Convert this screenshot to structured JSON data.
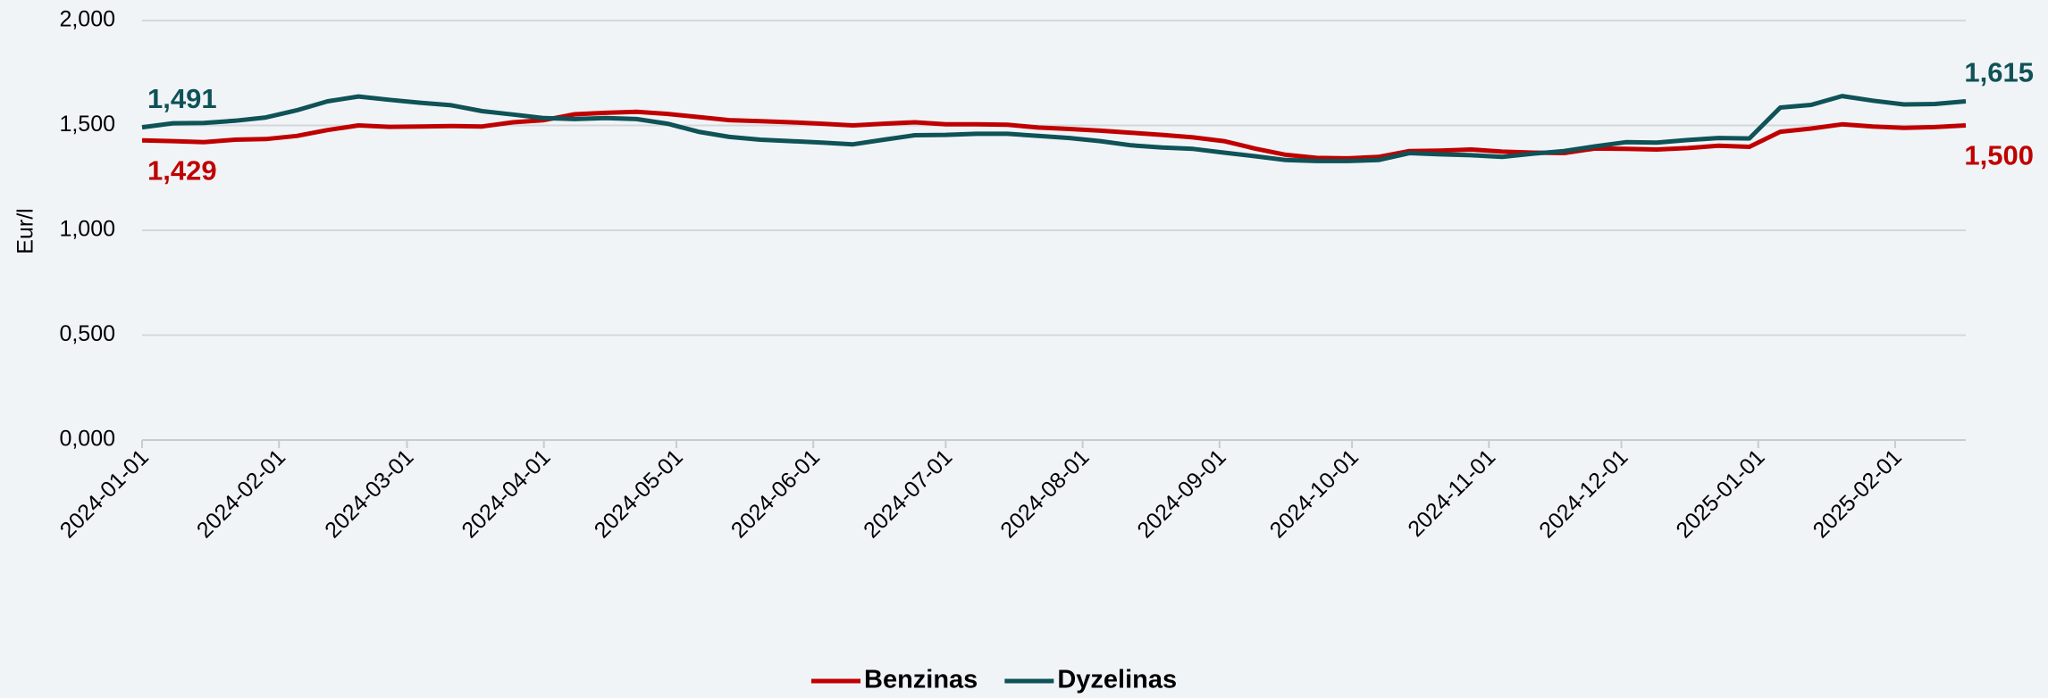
{
  "chart_data": {
    "type": "line",
    "ylabel": "Eur/l",
    "x": [
      "2024-01-01",
      "2024-01-08",
      "2024-01-15",
      "2024-01-22",
      "2024-01-29",
      "2024-02-05",
      "2024-02-12",
      "2024-02-19",
      "2024-02-26",
      "2024-03-04",
      "2024-03-11",
      "2024-03-18",
      "2024-03-25",
      "2024-04-01",
      "2024-04-08",
      "2024-04-15",
      "2024-04-22",
      "2024-04-29",
      "2024-05-06",
      "2024-05-13",
      "2024-05-20",
      "2024-05-27",
      "2024-06-03",
      "2024-06-10",
      "2024-06-17",
      "2024-06-24",
      "2024-07-01",
      "2024-07-08",
      "2024-07-15",
      "2024-07-22",
      "2024-07-29",
      "2024-08-05",
      "2024-08-12",
      "2024-08-19",
      "2024-08-26",
      "2024-09-02",
      "2024-09-09",
      "2024-09-16",
      "2024-09-23",
      "2024-09-30",
      "2024-10-07",
      "2024-10-14",
      "2024-10-21",
      "2024-10-28",
      "2024-11-04",
      "2024-11-11",
      "2024-11-18",
      "2024-11-25",
      "2024-12-02",
      "2024-12-09",
      "2024-12-16",
      "2024-12-23",
      "2024-12-30",
      "2025-01-06",
      "2025-01-13",
      "2025-01-20",
      "2025-01-27",
      "2025-02-03",
      "2025-02-10",
      "2025-02-17"
    ],
    "series": [
      {
        "name": "Benzinas",
        "color": "#c00000",
        "values": [
          1.429,
          1.425,
          1.42,
          1.432,
          1.435,
          1.45,
          1.478,
          1.5,
          1.493,
          1.495,
          1.497,
          1.495,
          1.515,
          1.525,
          1.553,
          1.56,
          1.565,
          1.555,
          1.54,
          1.525,
          1.52,
          1.515,
          1.508,
          1.5,
          1.508,
          1.515,
          1.505,
          1.505,
          1.503,
          1.49,
          1.483,
          1.475,
          1.465,
          1.455,
          1.443,
          1.425,
          1.39,
          1.36,
          1.345,
          1.343,
          1.35,
          1.378,
          1.38,
          1.385,
          1.375,
          1.37,
          1.368,
          1.39,
          1.388,
          1.385,
          1.392,
          1.403,
          1.398,
          1.47,
          1.485,
          1.505,
          1.495,
          1.488,
          1.492,
          1.5
        ],
        "value_labels": [
          "1,429",
          null,
          null,
          null,
          null,
          null,
          null,
          null,
          null,
          null,
          null,
          null,
          null,
          null,
          null,
          null,
          null,
          null,
          null,
          null,
          null,
          null,
          null,
          null,
          null,
          null,
          null,
          null,
          null,
          null,
          null,
          null,
          null,
          null,
          null,
          null,
          null,
          null,
          null,
          null,
          null,
          null,
          null,
          null,
          null,
          null,
          null,
          null,
          null,
          null,
          null,
          null,
          null,
          null,
          null,
          null,
          null,
          null,
          null,
          "1,500"
        ]
      },
      {
        "name": "Dyzelinas",
        "color": "#0f5257",
        "values": [
          1.491,
          1.51,
          1.512,
          1.522,
          1.538,
          1.572,
          1.615,
          1.638,
          1.622,
          1.608,
          1.596,
          1.568,
          1.552,
          1.535,
          1.53,
          1.535,
          1.53,
          1.508,
          1.47,
          1.445,
          1.432,
          1.425,
          1.418,
          1.41,
          1.432,
          1.453,
          1.455,
          1.46,
          1.46,
          1.45,
          1.44,
          1.425,
          1.405,
          1.395,
          1.388,
          1.37,
          1.353,
          1.335,
          1.33,
          1.33,
          1.335,
          1.368,
          1.362,
          1.358,
          1.35,
          1.365,
          1.378,
          1.4,
          1.42,
          1.418,
          1.43,
          1.44,
          1.438,
          1.585,
          1.598,
          1.64,
          1.618,
          1.6,
          1.602,
          1.615
        ],
        "value_labels": [
          "1,491",
          null,
          null,
          null,
          null,
          null,
          null,
          null,
          null,
          null,
          null,
          null,
          null,
          null,
          null,
          null,
          null,
          null,
          null,
          null,
          null,
          null,
          null,
          null,
          null,
          null,
          null,
          null,
          null,
          null,
          null,
          null,
          null,
          null,
          null,
          null,
          null,
          null,
          null,
          null,
          null,
          null,
          null,
          null,
          null,
          null,
          null,
          null,
          null,
          null,
          null,
          null,
          null,
          null,
          null,
          null,
          null,
          null,
          null,
          "1,615"
        ]
      }
    ],
    "xlim": [
      "2024-01-01",
      "2025-02-17"
    ],
    "xticks": [
      "2024-01-01",
      "2024-02-01",
      "2024-03-01",
      "2024-04-01",
      "2024-05-01",
      "2024-06-01",
      "2024-07-01",
      "2024-08-01",
      "2024-09-01",
      "2024-10-01",
      "2024-11-01",
      "2024-12-01",
      "2025-01-01",
      "2025-02-01"
    ],
    "ylim": [
      0,
      2
    ],
    "yticks": [
      {
        "value": 0,
        "label": "0,000"
      },
      {
        "value": 0.5,
        "label": "0,500"
      },
      {
        "value": 1,
        "label": "1,000"
      },
      {
        "value": 1.5,
        "label": "1,500"
      },
      {
        "value": 2,
        "label": "2,000"
      }
    ],
    "grid": true,
    "legend": "bottom"
  }
}
